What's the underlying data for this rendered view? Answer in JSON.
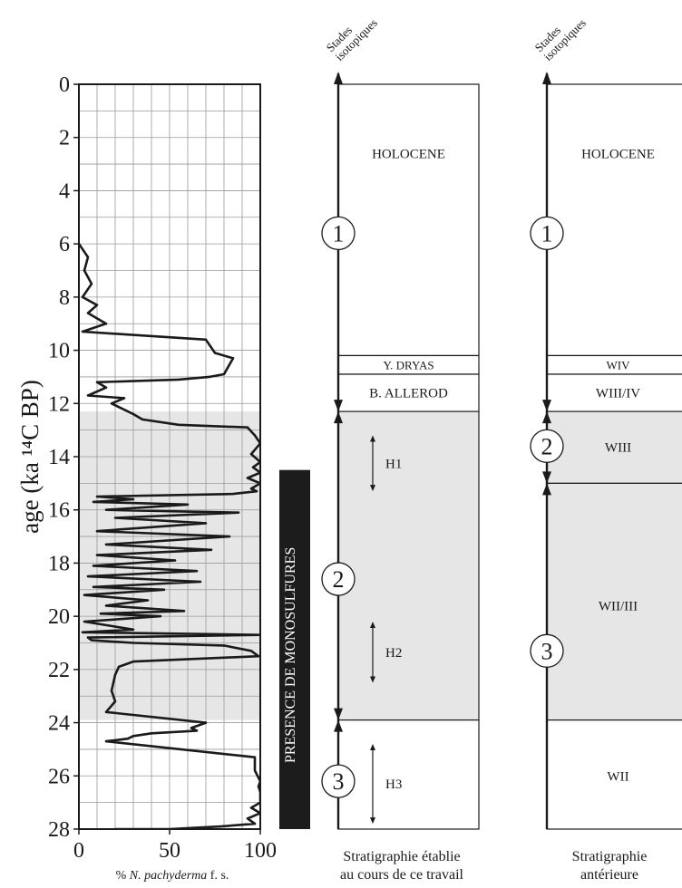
{
  "chart_data": {
    "type": "line",
    "ylabel": "age (ka ¹⁴C BP)",
    "xlabel": {
      "pre": "% ",
      "italic": "N. pachyderma",
      "post": " f. s."
    },
    "xlim": [
      0,
      100
    ],
    "ylim": [
      0,
      28
    ],
    "x_ticks": [
      "0",
      "50",
      "100"
    ],
    "y_ticks": [
      "0",
      "2",
      "4",
      "6",
      "8",
      "10",
      "12",
      "14",
      "16",
      "18",
      "20",
      "22",
      "24",
      "26",
      "28"
    ],
    "grid": true,
    "shaded_interval": [
      12.3,
      23.9
    ],
    "series": [
      {
        "x": [
          0,
          5,
          3,
          7,
          2,
          10,
          5,
          15,
          2,
          70,
          75,
          85,
          80,
          72,
          55,
          10,
          15,
          5,
          25,
          18,
          30,
          35,
          55,
          93,
          97,
          100,
          95,
          100,
          96,
          100,
          93,
          100,
          95,
          98,
          85,
          10,
          30,
          8,
          60,
          15,
          88,
          20,
          70,
          10,
          83,
          15,
          73,
          10,
          53,
          8,
          65,
          5,
          67,
          8,
          47,
          3,
          38,
          15,
          58,
          12,
          45,
          3,
          30,
          2,
          100,
          5,
          7,
          30,
          80,
          95,
          99,
          30,
          22,
          20,
          19,
          18,
          20,
          15,
          70,
          62,
          65,
          40,
          30,
          27,
          15,
          97,
          97,
          100,
          99,
          100,
          100,
          100,
          95,
          100,
          93,
          97,
          78,
          50,
          20
        ],
        "y": [
          6,
          6.5,
          7,
          7.5,
          8,
          8.3,
          8.6,
          9.0,
          9.3,
          9.6,
          10.1,
          10.3,
          10.9,
          11.0,
          11.1,
          11.2,
          11.4,
          11.7,
          11.8,
          12.0,
          12.4,
          12.6,
          12.8,
          12.9,
          13.2,
          13.5,
          13.9,
          14.2,
          14.4,
          14.6,
          14.8,
          15.0,
          15.2,
          15.3,
          15.4,
          15.5,
          15.6,
          15.7,
          15.8,
          16.0,
          16.1,
          16.3,
          16.5,
          16.8,
          17.0,
          17.3,
          17.5,
          17.7,
          17.9,
          18.1,
          18.3,
          18.5,
          18.7,
          18.9,
          19.0,
          19.2,
          19.4,
          19.6,
          19.8,
          19.9,
          20.0,
          20.2,
          20.5,
          20.6,
          20.7,
          20.8,
          20.9,
          21.0,
          21.1,
          21.3,
          21.5,
          21.7,
          21.9,
          22.2,
          22.5,
          22.8,
          23.2,
          23.6,
          24.0,
          24.2,
          24.3,
          24.4,
          24.5,
          24.6,
          24.7,
          25.3,
          25.8,
          26.2,
          26.4,
          26.6,
          26.8,
          27.0,
          27.2,
          27.4,
          27.6,
          27.8,
          27.9,
          28,
          28
        ]
      }
    ]
  },
  "monosulfures_label": "PRESENCE DE MONOSULFURES",
  "monosulfures_range": [
    14.5,
    28
  ],
  "column_header": "Stades\nisotopiques",
  "col1": {
    "footer": [
      "Stratigraphie établie",
      "au cours de ce travail"
    ],
    "zones": [
      {
        "label": "HOLOCENE",
        "from": 0,
        "to": 10.2,
        "at": 2.6
      },
      {
        "label": "Y. DRYAS",
        "from": 10.2,
        "to": 10.9,
        "at": 10.55
      },
      {
        "label": "B. ALLEROD",
        "from": 10.9,
        "to": 12.3,
        "at": 11.6
      },
      {
        "label": "",
        "from": 12.3,
        "to": 23.9,
        "shaded": true
      },
      {
        "label": "",
        "from": 23.9,
        "to": 28
      }
    ],
    "stages": [
      {
        "label": "1",
        "at": 5.6
      },
      {
        "label": "2",
        "at": 18.6
      },
      {
        "label": "3",
        "at": 26.2
      }
    ],
    "events": [
      {
        "label": "H1",
        "from": 13.2,
        "to": 15.3
      },
      {
        "label": "H2",
        "from": 20.2,
        "to": 22.5
      },
      {
        "label": "H3",
        "from": 24.8,
        "to": 27.8
      }
    ]
  },
  "col2": {
    "footer": [
      "Stratigraphie",
      "antérieure"
    ],
    "zones": [
      {
        "label": "HOLOCENE",
        "from": 0,
        "to": 10.2,
        "at": 2.6
      },
      {
        "label": "WIV",
        "from": 10.2,
        "to": 10.9,
        "at": 10.55
      },
      {
        "label": "WIII/IV",
        "from": 10.9,
        "to": 12.3,
        "at": 11.6
      },
      {
        "label": "WIII",
        "from": 12.3,
        "to": 15.0,
        "at": 13.65,
        "shaded": true
      },
      {
        "label": "WII/III",
        "from": 15.0,
        "to": 23.9,
        "at": 19.6,
        "shaded": true
      },
      {
        "label": "WII",
        "from": 23.9,
        "to": 28,
        "at": 26.0
      }
    ],
    "stages": [
      {
        "label": "1",
        "at": 5.6
      },
      {
        "label": "2",
        "at": 13.6
      },
      {
        "label": "3",
        "at": 21.3
      }
    ]
  },
  "colors": {
    "ink": "#1a1a1a",
    "shade": "#e6e6e6",
    "grid": "#9a9a9a",
    "bar": "#1c1c1c"
  }
}
